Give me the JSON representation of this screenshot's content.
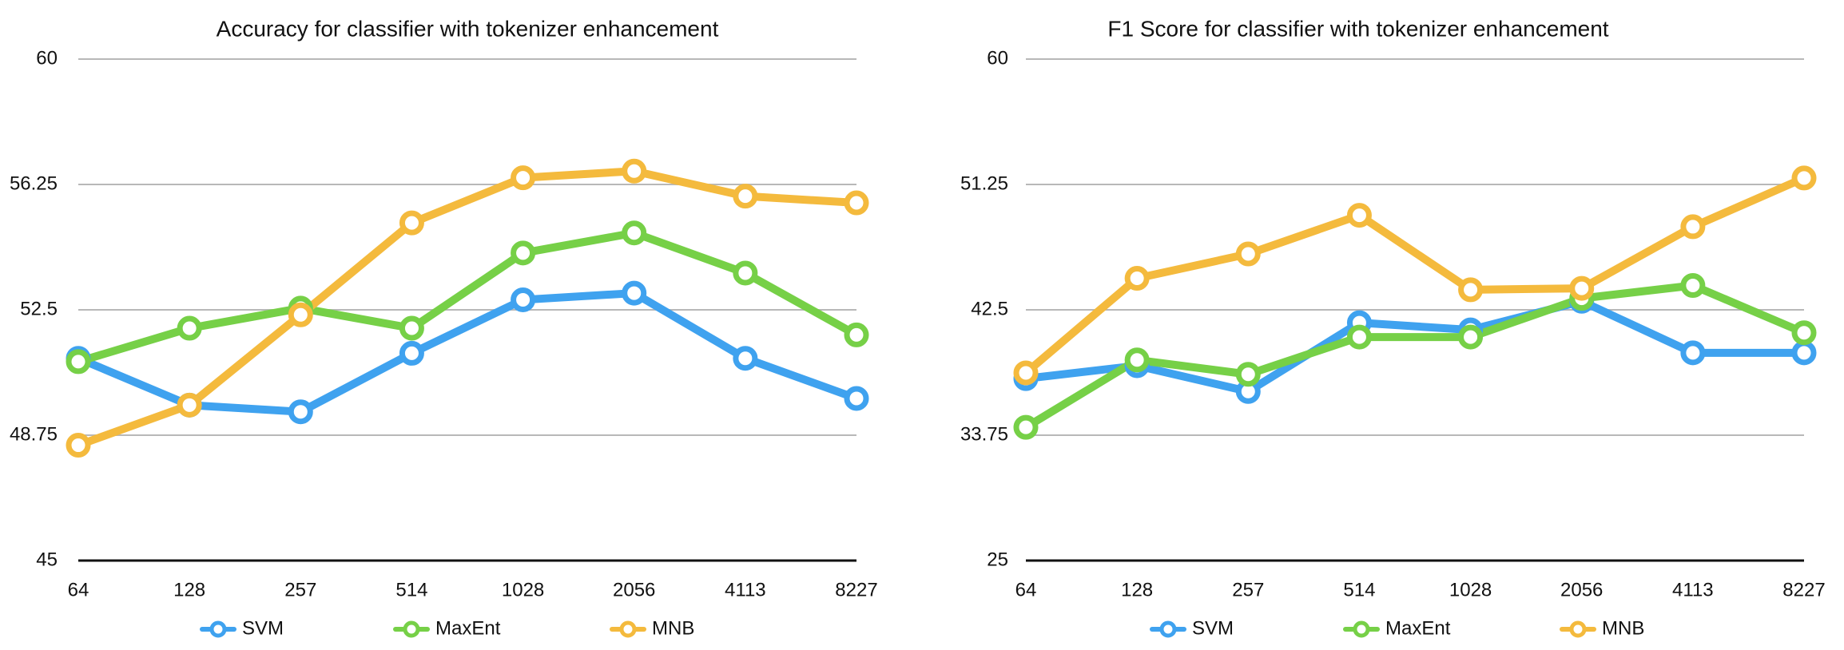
{
  "chart_data": [
    {
      "type": "line",
      "title": "Accuracy for classifier with tokenizer enhancement",
      "xlabel": "",
      "ylabel": "",
      "categories": [
        "64",
        "128",
        "257",
        "514",
        "1028",
        "2056",
        "4113",
        "8227"
      ],
      "ylim": [
        45,
        60
      ],
      "y_ticks": [
        "45",
        "48.75",
        "52.5",
        "56.25",
        "60"
      ],
      "grid": true,
      "legend": "bottom",
      "series": [
        {
          "name": "SVM",
          "color": "#3fa2ef",
          "values": [
            51.05,
            49.65,
            49.45,
            51.2,
            52.8,
            53.0,
            51.05,
            49.85
          ]
        },
        {
          "name": "MaxEnt",
          "color": "#76d047",
          "values": [
            50.95,
            51.95,
            52.55,
            51.95,
            54.2,
            54.8,
            53.6,
            51.75
          ]
        },
        {
          "name": "MNB",
          "color": "#f4ba3d",
          "values": [
            48.45,
            49.65,
            52.35,
            55.1,
            56.45,
            56.65,
            55.9,
            55.7
          ]
        }
      ]
    },
    {
      "type": "line",
      "title": "F1 Score for classifier with tokenizer enhancement",
      "xlabel": "",
      "ylabel": "",
      "categories": [
        "64",
        "128",
        "257",
        "514",
        "1028",
        "2056",
        "4113",
        "8227"
      ],
      "ylim": [
        25,
        60
      ],
      "y_ticks": [
        "25",
        "33.75",
        "42.5",
        "51.25",
        "60"
      ],
      "grid": true,
      "legend": "bottom",
      "series": [
        {
          "name": "SVM",
          "color": "#3fa2ef",
          "values": [
            37.7,
            38.6,
            36.8,
            41.6,
            41.1,
            43.1,
            39.5,
            39.5
          ]
        },
        {
          "name": "MaxEnt",
          "color": "#76d047",
          "values": [
            34.3,
            39.0,
            38.0,
            40.6,
            40.6,
            43.3,
            44.2,
            40.9
          ]
        },
        {
          "name": "MNB",
          "color": "#f4ba3d",
          "values": [
            38.1,
            44.7,
            46.4,
            49.1,
            43.9,
            44.0,
            48.3,
            51.7
          ]
        }
      ]
    }
  ]
}
